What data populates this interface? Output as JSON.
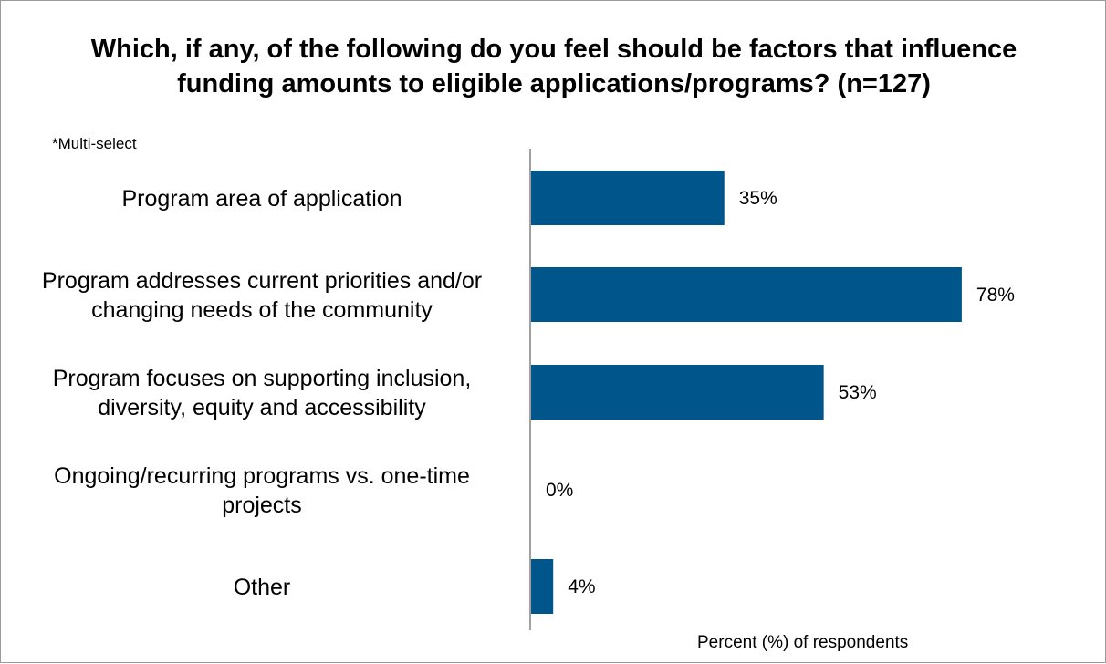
{
  "chart_data": {
    "type": "bar",
    "orientation": "horizontal",
    "title": "Which, if any, of the following do you feel should be factors that influence funding amounts to eligible applications/programs? (n=127)",
    "title_lines": [
      "Which, if any, of the following do you feel should be factors that influence",
      "funding amounts to eligible applications/programs? (n=127)"
    ],
    "note": "*Multi-select",
    "xlabel": "Percent (%) of respondents",
    "categories": [
      "Program area of application",
      "Program addresses current priorities and/or changing needs of the community",
      "Program focuses on supporting inclusion, diversity, equity and accessibility",
      "Ongoing/recurring programs vs. one-time projects",
      "Other"
    ],
    "category_lines": [
      [
        "Program area of application"
      ],
      [
        "Program addresses current priorities and/or",
        "changing needs of the community"
      ],
      [
        "Program focuses on supporting inclusion,",
        "diversity, equity and accessibility"
      ],
      [
        "Ongoing/recurring programs vs. one-time",
        "projects"
      ],
      [
        "Other"
      ]
    ],
    "values": [
      35,
      78,
      53,
      0,
      4
    ],
    "value_labels": [
      "35%",
      "78%",
      "53%",
      "0%",
      "4%"
    ],
    "bar_color": "#00568b",
    "grid": false
  }
}
